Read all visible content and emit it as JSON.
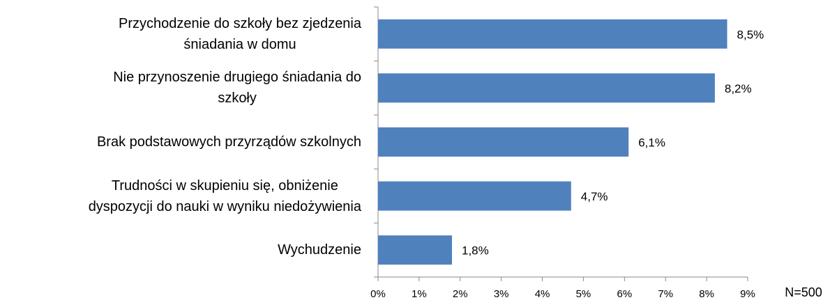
{
  "chart_data": {
    "type": "bar",
    "orientation": "horizontal",
    "categories": [
      "Przychodzenie do szkoły bez zjedzenia\nśniadania w domu",
      "Nie przynoszenie drugiego śniadania do\nszkoły",
      "Brak podstawowych przyrządów szkolnych",
      "Trudności w skupieniu się, obniżenie\ndyspozycji do nauki w wyniku niedożywienia",
      "Wychudzenie"
    ],
    "values": [
      8.5,
      8.2,
      6.1,
      4.7,
      1.8
    ],
    "value_labels": [
      "8,5%",
      "8,2%",
      "6,1%",
      "4,7%",
      "1,8%"
    ],
    "color": "#4f81bd",
    "xlim": [
      0,
      9
    ],
    "xticks": [
      {
        "value": 0,
        "label": "0%"
      },
      {
        "value": 1,
        "label": "1%"
      },
      {
        "value": 2,
        "label": "2%"
      },
      {
        "value": 3,
        "label": "3%"
      },
      {
        "value": 4,
        "label": "4%"
      },
      {
        "value": 5,
        "label": "5%"
      },
      {
        "value": 6,
        "label": "6%"
      },
      {
        "value": 7,
        "label": "7%"
      },
      {
        "value": 8,
        "label": "8%"
      },
      {
        "value": 9,
        "label": "9%"
      }
    ],
    "annotation": "N=500"
  }
}
